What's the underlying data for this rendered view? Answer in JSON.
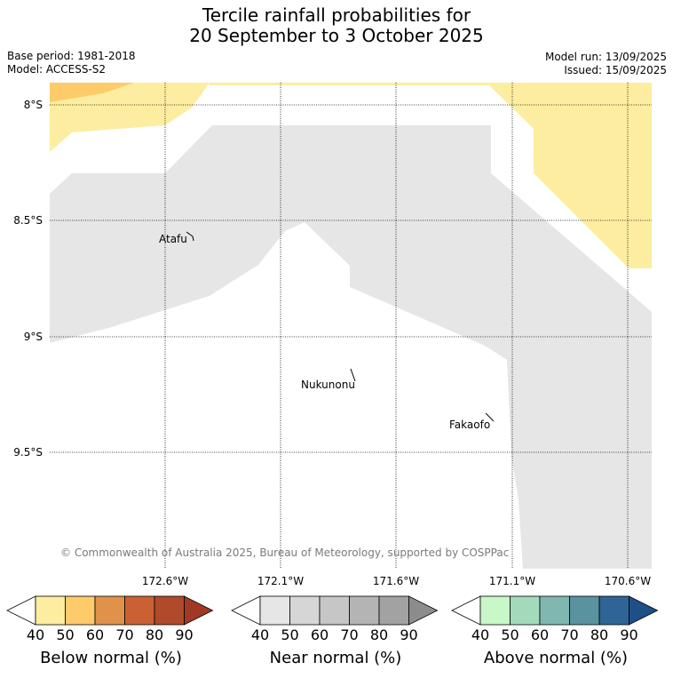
{
  "title": {
    "line1": "Tercile rainfall probabilities for",
    "line2": "20 September to 3 October 2025"
  },
  "meta": {
    "base_period": "Base period: 1981-2018",
    "model": "Model: ACCESS-S2",
    "model_run": "Model run: 13/09/2025",
    "issued": "Issued: 15/09/2025"
  },
  "map": {
    "lat_labels": [
      "8°S",
      "8.5°S",
      "9°S",
      "9.5°S"
    ],
    "lon_labels": [
      "172.6°W",
      "172.1°W",
      "171.6°W",
      "171.1°W",
      "170.6°W"
    ],
    "islands": [
      "Atafu",
      "Nukunonu",
      "Fakaofo"
    ],
    "copyright": "© Commonwealth of Australia 2025, Bureau of Meteorology, supported by COSPPac",
    "categories": {
      "below_50": "#fdeda0",
      "below_60": "#fdcb69",
      "near_40": "#e6e6e6",
      "none": "#ffffff"
    }
  },
  "colorbars": [
    {
      "label": "Below normal (%)",
      "ticks": [
        "40",
        "50",
        "60",
        "70",
        "80",
        "90"
      ],
      "colors": [
        "#fdeda0",
        "#fdcb69",
        "#e0924a",
        "#ca6134",
        "#b04a2a",
        "#a13a24"
      ]
    },
    {
      "label": "Near normal (%)",
      "ticks": [
        "40",
        "50",
        "60",
        "70",
        "80",
        "90"
      ],
      "colors": [
        "#e6e6e6",
        "#d6d6d6",
        "#c6c6c6",
        "#b4b4b4",
        "#a2a2a2",
        "#8c8c8c"
      ]
    },
    {
      "label": "Above normal (%)",
      "ticks": [
        "40",
        "50",
        "60",
        "70",
        "80",
        "90"
      ],
      "colors": [
        "#c8f8c8",
        "#a4dabc",
        "#80b8b0",
        "#5a92a0",
        "#2e6496",
        "#1e4f86"
      ]
    }
  ]
}
